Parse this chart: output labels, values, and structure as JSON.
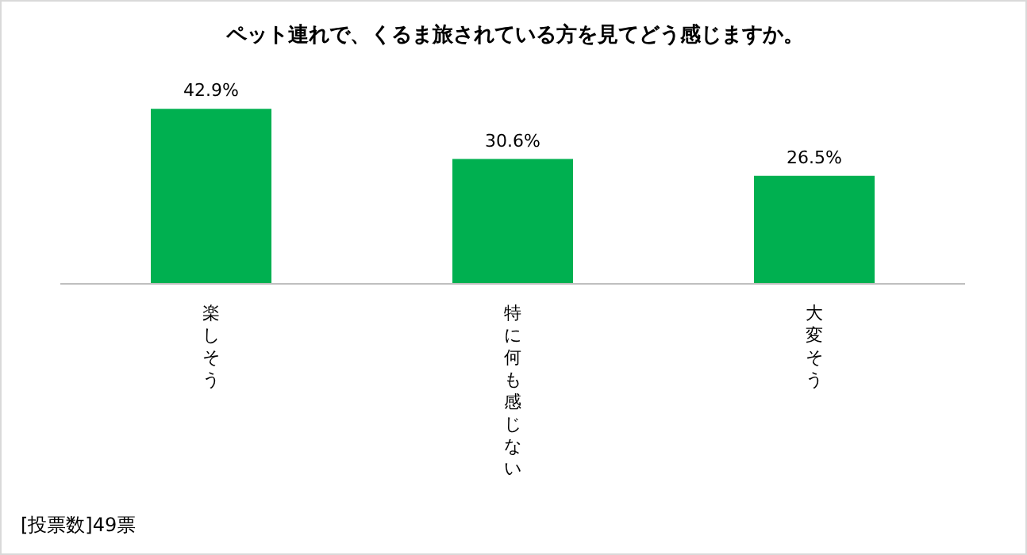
{
  "chart_data": {
    "type": "bar",
    "title": "ペット連れで、くるま旅されている方を見てどう感じますか。",
    "categories": [
      "楽しそう",
      "特に何も感じない",
      "大変そう"
    ],
    "values": [
      42.9,
      30.6,
      26.5
    ],
    "value_labels": [
      "42.9%",
      "30.6%",
      "26.5%"
    ],
    "color": "#00b050",
    "annotations": [
      "[投票数]49票"
    ]
  }
}
